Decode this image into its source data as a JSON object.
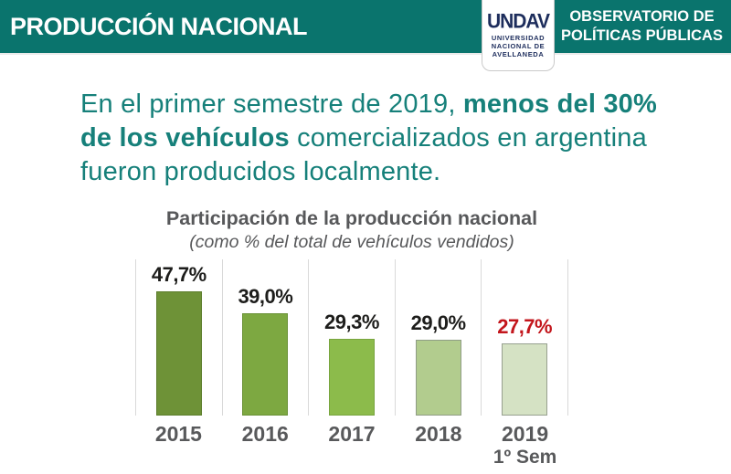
{
  "header": {
    "title": "PRODUCCIÓN NACIONAL",
    "observatory_line1": "OBSERVATORIO DE",
    "observatory_line2": "POLÍTICAS PÚBLICAS",
    "logo": {
      "acronym": "UNDAV",
      "line1": "UNIVERSIDAD",
      "line2": "NACIONAL DE",
      "line3": "AVELLANEDA"
    },
    "band_color": "#0a746d"
  },
  "headline": {
    "color": "#16807a",
    "segments": [
      {
        "text": "En el primer semestre de 2019, ",
        "bold": false
      },
      {
        "text": "menos del 30% de los vehículos",
        "bold": true
      },
      {
        "text": " comercializados en argentina fueron producidos localmente.",
        "bold": false
      }
    ]
  },
  "chart_data": {
    "type": "bar",
    "title": "Participación de la producción nacional",
    "subtitle": "(como % del total de vehículos vendidos)",
    "categories": [
      "2015",
      "2016",
      "2017",
      "2018",
      "2019"
    ],
    "category_sublabels": [
      "",
      "",
      "",
      "",
      "1º Sem"
    ],
    "values": [
      47.7,
      39.0,
      29.3,
      29.0,
      27.7
    ],
    "value_labels": [
      "47,7%",
      "39,0%",
      "29,3%",
      "29,0%",
      "27,7%"
    ],
    "bar_colors": [
      "#6e9237",
      "#7da841",
      "#8cbb4b",
      "#b2cc8e",
      "#d5e2c4"
    ],
    "bar_border_colors": [
      "#5d7e2d",
      "#6a9136",
      "#78a53f",
      "#8f9c85",
      "#97a08f"
    ],
    "label_colors": [
      "#1d1d1b",
      "#1d1d1b",
      "#1d1d1b",
      "#1d1d1b",
      "#c3161c"
    ],
    "xlabel": "",
    "ylabel": "",
    "ylim": [
      0,
      50
    ],
    "grid": "vertical-column-separators",
    "legend": "none"
  }
}
